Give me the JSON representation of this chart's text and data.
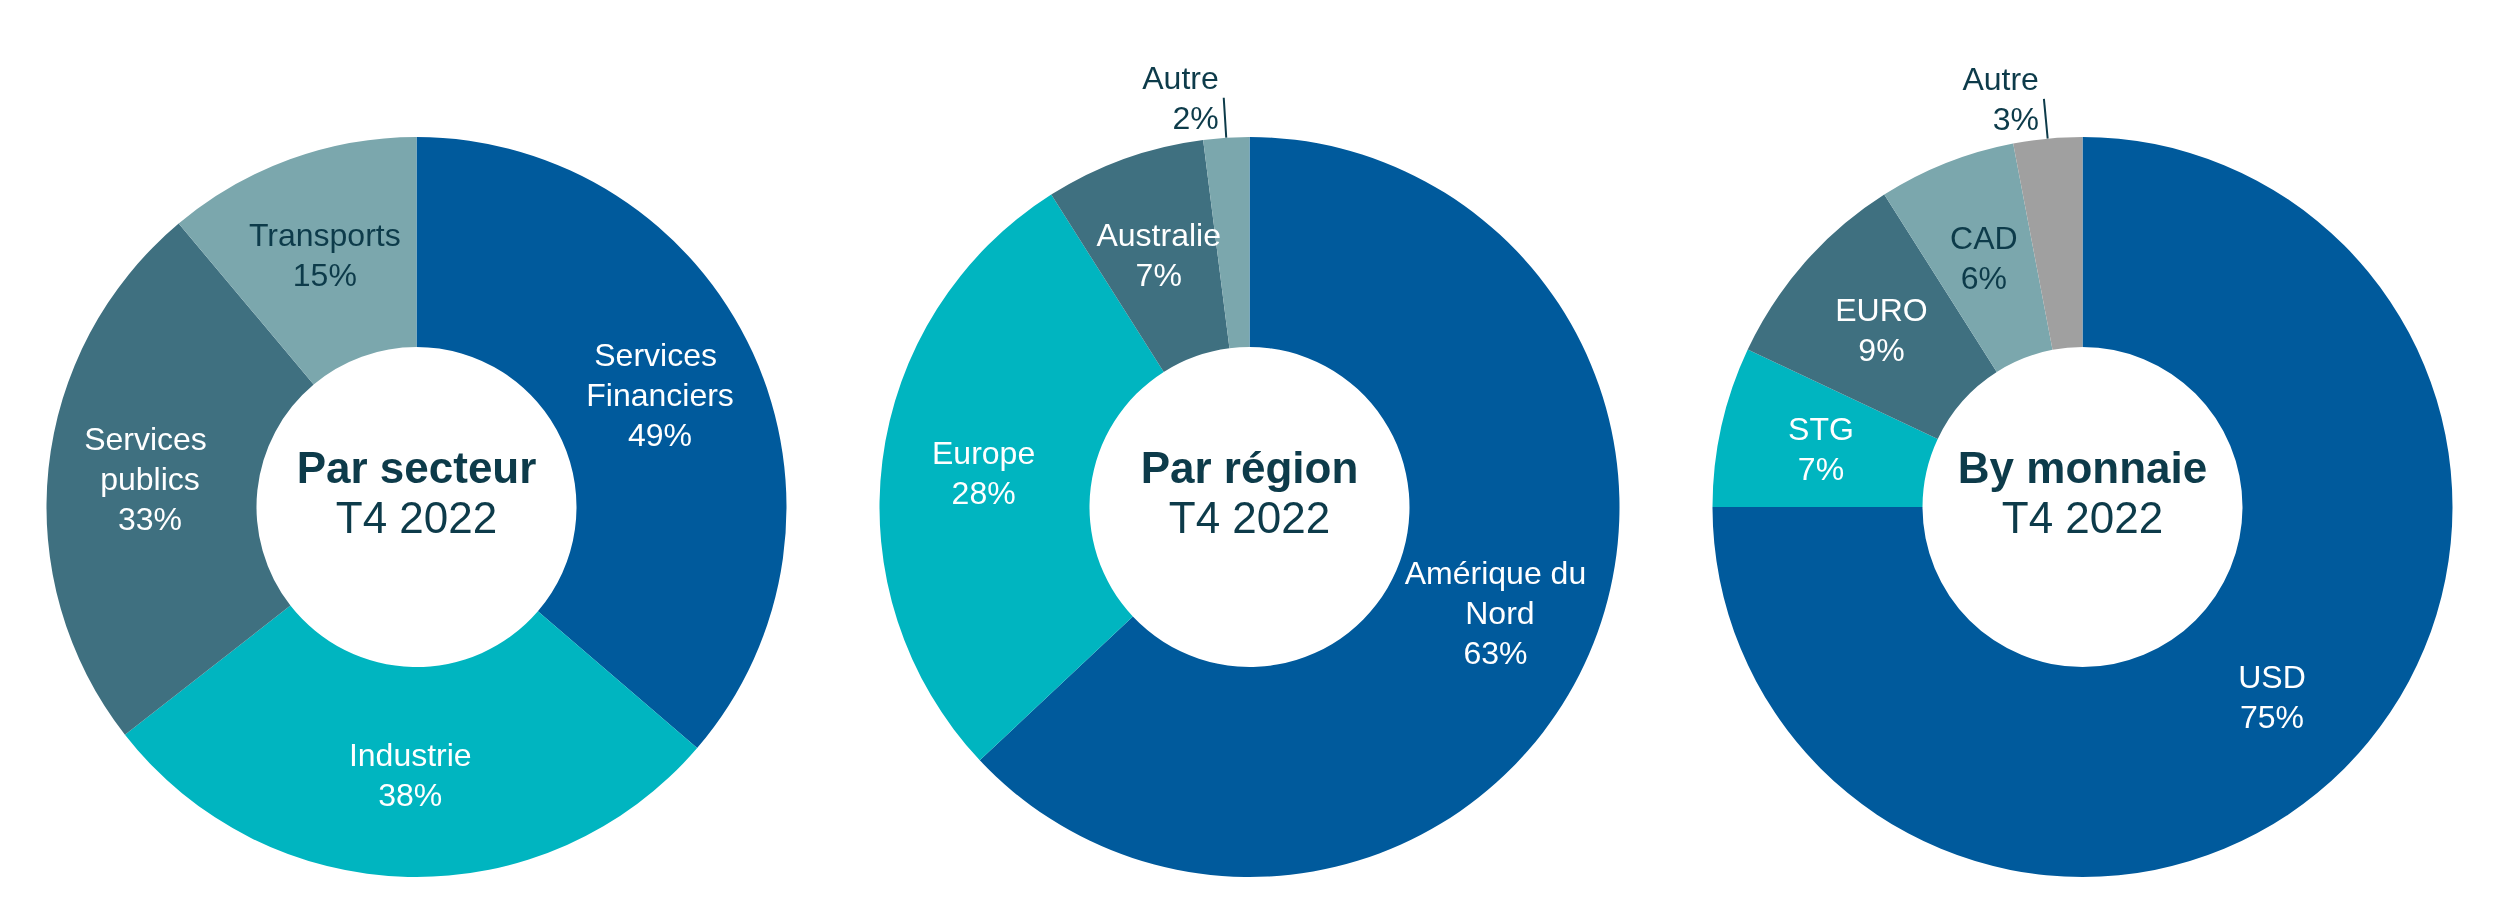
{
  "chart_data": [
    {
      "type": "donut",
      "title": "Par secteur",
      "subtitle": "T4 2022",
      "categories": [
        "Services Financiers",
        "Industrie",
        "Services publics",
        "Transports"
      ],
      "values": [
        49,
        38,
        33,
        15
      ],
      "value_labels": [
        "49%",
        "38%",
        "33%",
        "15%"
      ],
      "colors": [
        "#005a9c",
        "#00b5c0",
        "#3f7080",
        "#7ba7ad"
      ],
      "legend": false
    },
    {
      "type": "donut",
      "title": "Par région",
      "subtitle": "T4 2022",
      "categories": [
        "Amérique du Nord",
        "Europe",
        "Australie",
        "Autre"
      ],
      "values": [
        63,
        28,
        7,
        2
      ],
      "value_labels": [
        "63%",
        "28%",
        "7%",
        "2%"
      ],
      "colors": [
        "#005a9c",
        "#00b5c0",
        "#3f7080",
        "#7ba7ad"
      ],
      "legend": false
    },
    {
      "type": "donut",
      "title": "By monnaie",
      "subtitle": "T4 2022",
      "categories": [
        "USD",
        "STG",
        "EURO",
        "CAD",
        "Autre"
      ],
      "values": [
        75,
        7,
        9,
        6,
        3
      ],
      "value_labels": [
        "75%",
        "7%",
        "9%",
        "6%",
        "3%"
      ],
      "colors": [
        "#005a9c",
        "#00b5c0",
        "#3f7080",
        "#7ba7ad",
        "#a0a0a0"
      ],
      "legend": false
    }
  ]
}
